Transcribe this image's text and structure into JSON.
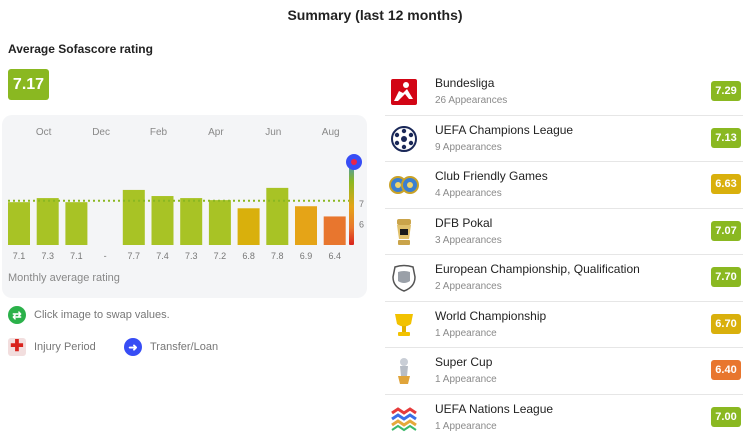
{
  "title": "Summary (last 12 months)",
  "average": {
    "label": "Average Sofascore rating",
    "value": "7.17",
    "color": "#8ab821"
  },
  "chart_data": {
    "type": "bar",
    "months": [
      "Oct",
      "Dec",
      "Feb",
      "Apr",
      "Jun",
      "Aug"
    ],
    "labels": [
      "7.1",
      "7.3",
      "7.1",
      "-",
      "7.7",
      "7.4",
      "7.3",
      "7.2",
      "6.8",
      "7.8",
      "6.9",
      "6.4"
    ],
    "values": [
      7.1,
      7.3,
      7.1,
      null,
      7.7,
      7.4,
      7.3,
      7.2,
      6.8,
      7.8,
      6.9,
      6.4
    ],
    "colors": [
      "#a8c325",
      "#a8c325",
      "#a8c325",
      null,
      "#a8c325",
      "#a8c325",
      "#a8c325",
      "#a8c325",
      "#d9b00c",
      "#a8c325",
      "#e5a417",
      "#e8762e"
    ],
    "average_line": 7.17,
    "scale_ticks": [
      "7",
      "6"
    ],
    "caption": "Monthly average rating"
  },
  "legend": {
    "swap_hint": "Click image to swap values.",
    "injury": "Injury Period",
    "transfer": "Transfer/Loan"
  },
  "competitions": [
    {
      "name": "Bundesliga",
      "appearances": "26 Appearances",
      "rating": "7.29",
      "color": "#8ab821",
      "icon": "bundesliga-logo-icon"
    },
    {
      "name": "UEFA Champions League",
      "appearances": "9 Appearances",
      "rating": "7.13",
      "color": "#8ab821",
      "icon": "champions-league-logo-icon"
    },
    {
      "name": "Club Friendly Games",
      "appearances": "4 Appearances",
      "rating": "6.63",
      "color": "#d9b00c",
      "icon": "club-friendly-logo-icon"
    },
    {
      "name": "DFB Pokal",
      "appearances": "3 Appearances",
      "rating": "7.07",
      "color": "#8ab821",
      "icon": "dfb-pokal-logo-icon"
    },
    {
      "name": "European Championship, Qualification",
      "appearances": "2 Appearances",
      "rating": "7.70",
      "color": "#8ab821",
      "icon": "euro-qualification-logo-icon"
    },
    {
      "name": "World Championship",
      "appearances": "1 Appearance",
      "rating": "6.70",
      "color": "#d9b00c",
      "icon": "world-cup-trophy-icon"
    },
    {
      "name": "Super Cup",
      "appearances": "1 Appearance",
      "rating": "6.40",
      "color": "#e8762e",
      "icon": "super-cup-trophy-icon"
    },
    {
      "name": "UEFA Nations League",
      "appearances": "1 Appearance",
      "rating": "7.00",
      "color": "#8ab821",
      "icon": "nations-league-logo-icon"
    }
  ]
}
